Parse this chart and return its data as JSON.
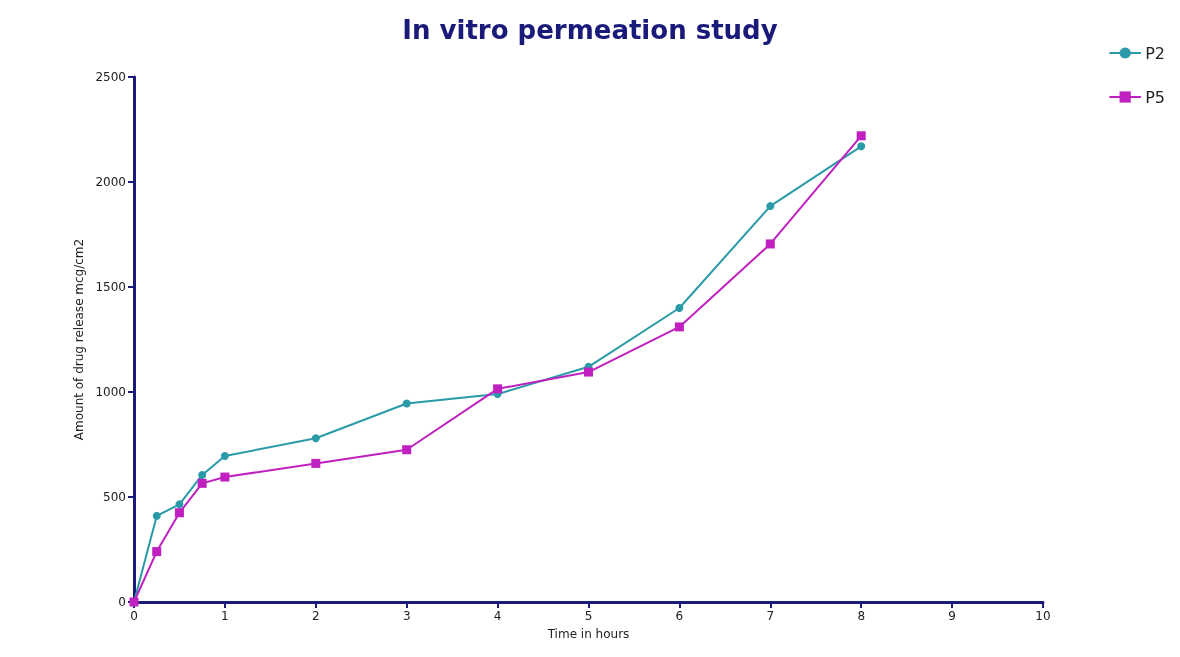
{
  "chart_data": {
    "type": "line",
    "title": "In vitro permeation study",
    "xlabel": "Time in hours",
    "ylabel": "Amount of drug release mcg/cm2",
    "x": [
      0,
      0.25,
      0.5,
      0.75,
      1,
      2,
      3,
      4,
      5,
      6,
      7,
      8
    ],
    "series": [
      {
        "name": "P2",
        "color": "#2a9aa8",
        "marker": "circle",
        "values": [
          0,
          410,
          465,
          605,
          695,
          780,
          945,
          990,
          1120,
          1400,
          1885,
          2170
        ]
      },
      {
        "name": "P5",
        "color": "#c020c0",
        "marker": "square",
        "values": [
          0,
          240,
          425,
          565,
          595,
          660,
          725,
          1015,
          1095,
          1310,
          1705,
          2220
        ]
      }
    ],
    "xlim": [
      0,
      10
    ],
    "xticks": [
      0,
      1,
      2,
      3,
      4,
      5,
      6,
      7,
      8,
      9,
      10
    ],
    "ylim": [
      0,
      2500
    ],
    "yticks": [
      0,
      500,
      1000,
      1500,
      2000,
      2500
    ],
    "grid": false,
    "legend": "top right",
    "line_style": "solid"
  }
}
